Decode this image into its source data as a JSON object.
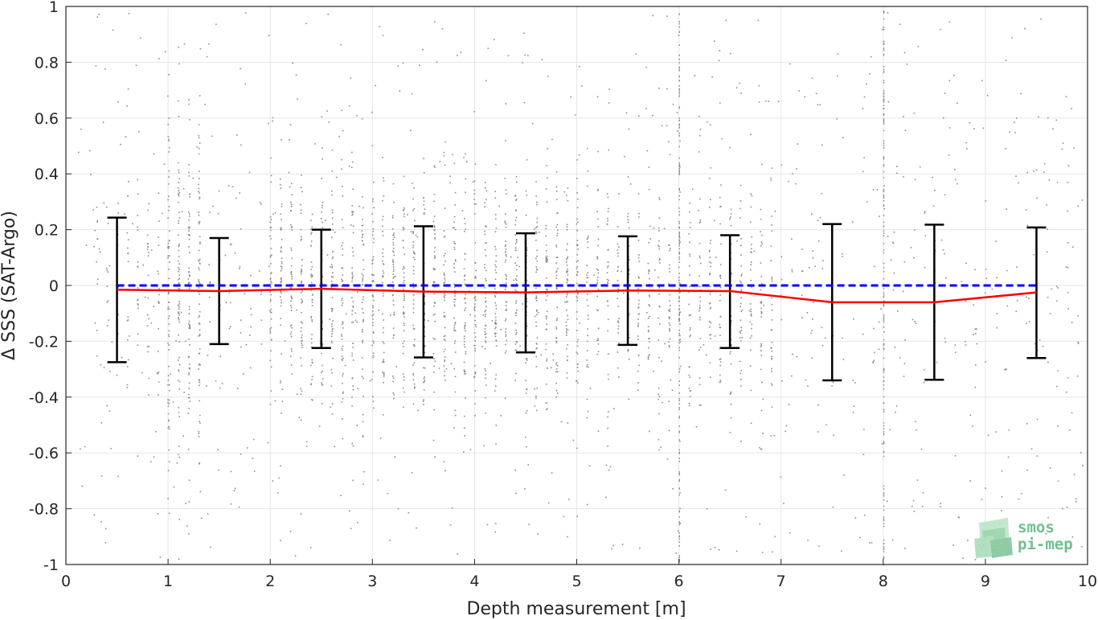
{
  "chart_data": {
    "type": "scatter",
    "title": "",
    "xlabel": "Depth measurement [m]",
    "ylabel": "Δ SSS (SAT-Argo)",
    "xlim": [
      0,
      10
    ],
    "ylim": [
      -1,
      1
    ],
    "x_ticks": [
      "0",
      "1",
      "2",
      "3",
      "4",
      "5",
      "6",
      "7",
      "8",
      "9",
      "10"
    ],
    "y_ticks": [
      "-1",
      "-0.8",
      "-0.6",
      "-0.4",
      "-0.2",
      "0",
      "0.2",
      "0.4",
      "0.6",
      "0.8",
      "1"
    ],
    "grid": true,
    "legend": "none",
    "scatter_color": "#8c8c8c",
    "mean_line_color": "#ff0000",
    "zero_line_color": "#0000ff",
    "errorbar_color": "#000000",
    "zero_line": {
      "x": [
        0.5,
        9.5
      ],
      "y": [
        0,
        0
      ],
      "style": "dashed"
    },
    "series": [
      {
        "x": [
          0.5,
          1.5,
          2.5,
          3.5,
          4.5,
          5.5,
          6.5,
          7.5,
          8.5,
          9.5
        ],
        "mean": [
          -0.015,
          -0.02,
          -0.012,
          -0.022,
          -0.025,
          -0.018,
          -0.02,
          -0.06,
          -0.06,
          -0.025
        ],
        "upper": [
          0.243,
          0.17,
          0.2,
          0.212,
          0.187,
          0.176,
          0.18,
          0.22,
          0.218,
          0.208
        ],
        "lower": [
          -0.275,
          -0.21,
          -0.224,
          -0.258,
          -0.24,
          -0.213,
          -0.224,
          -0.34,
          -0.338,
          -0.26
        ]
      }
    ]
  },
  "logo": {
    "line1": "smos",
    "line2": "pi-mep"
  }
}
